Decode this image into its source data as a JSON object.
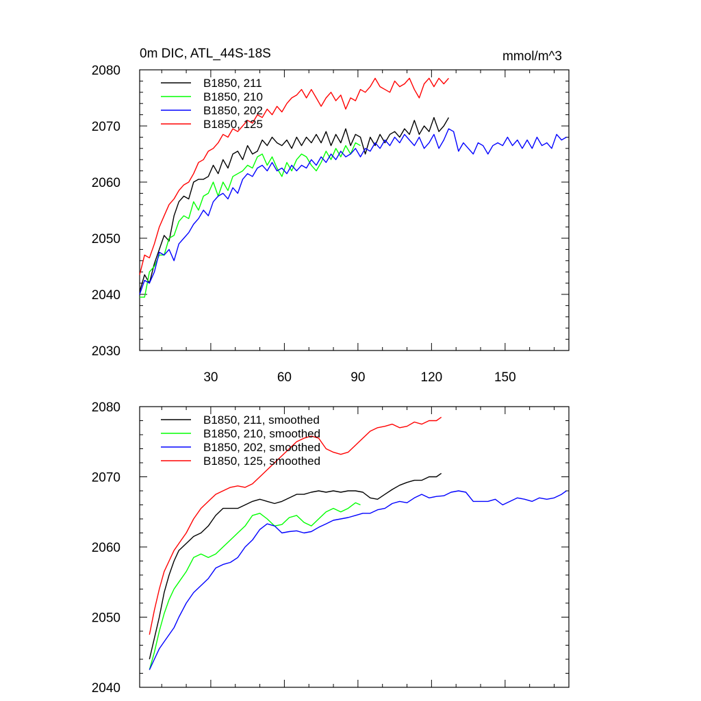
{
  "chart_data": [
    {
      "type": "line",
      "title": "0m DIC, ATL_44S-18S",
      "units": "mmol/m^3",
      "xlim": [
        1,
        176
      ],
      "ylim": [
        2030,
        2080
      ],
      "xticks": [
        30,
        60,
        90,
        120,
        150
      ],
      "yticks": [
        2030,
        2040,
        2050,
        2060,
        2070,
        2080
      ],
      "legend_position": "top-left",
      "series": [
        {
          "name": "B1850, 211",
          "color": "#000000",
          "x": [
            1,
            3,
            5,
            7,
            9,
            11,
            13,
            15,
            17,
            19,
            21,
            23,
            25,
            27,
            29,
            31,
            33,
            35,
            37,
            39,
            41,
            43,
            45,
            47,
            49,
            51,
            53,
            55,
            57,
            59,
            61,
            63,
            65,
            67,
            69,
            71,
            73,
            75,
            77,
            79,
            81,
            83,
            85,
            87,
            89,
            91,
            93,
            95,
            97,
            99,
            101,
            103,
            105,
            107,
            109,
            111,
            113,
            115,
            117,
            119,
            121,
            123,
            125,
            127
          ],
          "y": [
            2040.5,
            2043.5,
            2042,
            2045.5,
            2048,
            2050.5,
            2049.5,
            2054,
            2056.5,
            2057.5,
            2057,
            2060,
            2060.5,
            2060.5,
            2061,
            2063,
            2061.5,
            2064,
            2062.5,
            2065,
            2065.5,
            2064,
            2066.5,
            2065,
            2065.5,
            2067.5,
            2066.5,
            2068,
            2067,
            2066.5,
            2067.5,
            2066,
            2068,
            2066.5,
            2068,
            2067,
            2068.5,
            2067,
            2069,
            2066.5,
            2068.5,
            2067,
            2069.5,
            2066.5,
            2068.5,
            2068,
            2065,
            2068,
            2066.5,
            2068.5,
            2067,
            2068.5,
            2069,
            2068,
            2069.5,
            2068.5,
            2071,
            2068.5,
            2070,
            2069,
            2071.5,
            2069,
            2070,
            2071.5
          ]
        },
        {
          "name": "B1850, 210",
          "color": "#00ff00",
          "x": [
            1,
            3,
            5,
            7,
            9,
            11,
            13,
            15,
            17,
            19,
            21,
            23,
            25,
            27,
            29,
            31,
            33,
            35,
            37,
            39,
            41,
            43,
            45,
            47,
            49,
            51,
            53,
            55,
            57,
            59,
            61,
            63,
            65,
            67,
            69,
            71,
            73,
            75,
            77,
            79,
            81,
            83,
            85,
            87,
            89,
            91
          ],
          "y": [
            2039.5,
            2039.5,
            2044,
            2045,
            2047,
            2047,
            2050,
            2050.5,
            2053,
            2054,
            2053.5,
            2056.5,
            2055,
            2057.5,
            2058,
            2060,
            2057.5,
            2060,
            2058.5,
            2061,
            2061.5,
            2062,
            2063,
            2062.5,
            2064.5,
            2065,
            2063,
            2064.5,
            2062.5,
            2061,
            2063.5,
            2062,
            2064,
            2065,
            2064.5,
            2063,
            2062,
            2063.5,
            2065.5,
            2064,
            2066,
            2064.5,
            2066.5,
            2065,
            2067,
            2066.5
          ]
        },
        {
          "name": "B1850, 202",
          "color": "#0000ff",
          "x": [
            1,
            3,
            5,
            7,
            9,
            11,
            13,
            15,
            17,
            19,
            21,
            23,
            25,
            27,
            29,
            31,
            33,
            35,
            37,
            39,
            41,
            43,
            45,
            47,
            49,
            51,
            53,
            55,
            57,
            59,
            61,
            63,
            65,
            67,
            69,
            71,
            73,
            75,
            77,
            79,
            81,
            83,
            85,
            87,
            89,
            91,
            93,
            95,
            97,
            99,
            101,
            103,
            105,
            107,
            109,
            111,
            113,
            115,
            117,
            119,
            121,
            123,
            125,
            127,
            129,
            131,
            133,
            135,
            137,
            139,
            141,
            143,
            145,
            147,
            149,
            151,
            153,
            155,
            157,
            159,
            161,
            163,
            165,
            167,
            169,
            171,
            173,
            175
          ],
          "y": [
            2040,
            2042.5,
            2042,
            2044,
            2047.5,
            2047,
            2048,
            2046,
            2049,
            2050,
            2051,
            2052.5,
            2053.5,
            2055,
            2054,
            2056.5,
            2057.5,
            2058,
            2057,
            2059,
            2058,
            2060.5,
            2061.5,
            2061,
            2062.5,
            2063,
            2062,
            2063.5,
            2062,
            2062.5,
            2061.5,
            2063,
            2062,
            2063,
            2062.5,
            2064,
            2063,
            2064.5,
            2063.5,
            2065,
            2064,
            2065.5,
            2064.5,
            2065,
            2066,
            2064.5,
            2066,
            2065.5,
            2067,
            2066,
            2067.5,
            2066.5,
            2068,
            2067,
            2068.5,
            2067.5,
            2066.5,
            2068,
            2066,
            2067,
            2068.5,
            2066,
            2067.5,
            2069.5,
            2069,
            2065.5,
            2067,
            2066,
            2065,
            2067,
            2066.5,
            2065,
            2066.5,
            2067,
            2066.5,
            2068,
            2066.5,
            2067.5,
            2066,
            2067.5,
            2066,
            2068,
            2066.5,
            2067,
            2066,
            2068.5,
            2067.5,
            2068
          ]
        },
        {
          "name": "B1850, 125",
          "color": "#ff0000",
          "x": [
            1,
            3,
            5,
            7,
            9,
            11,
            13,
            15,
            17,
            19,
            21,
            23,
            25,
            27,
            29,
            31,
            33,
            35,
            37,
            39,
            41,
            43,
            45,
            47,
            49,
            51,
            53,
            55,
            57,
            59,
            61,
            63,
            65,
            67,
            69,
            71,
            73,
            75,
            77,
            79,
            81,
            83,
            85,
            87,
            89,
            91,
            93,
            95,
            97,
            99,
            101,
            103,
            105,
            107,
            109,
            111,
            113,
            115,
            117,
            119,
            121,
            123,
            125,
            127
          ],
          "y": [
            2043.5,
            2047,
            2046.5,
            2049,
            2052,
            2054,
            2056,
            2057,
            2058.5,
            2059.5,
            2060,
            2061.5,
            2063.5,
            2064,
            2065.5,
            2066,
            2067,
            2068.5,
            2068,
            2069.5,
            2069,
            2070,
            2071,
            2070.5,
            2072,
            2071.5,
            2073,
            2072,
            2073.5,
            2072.5,
            2074,
            2075,
            2075.5,
            2076.5,
            2075,
            2076.5,
            2075,
            2073.5,
            2075,
            2076,
            2074.5,
            2075.5,
            2073,
            2075,
            2074.5,
            2076.5,
            2076,
            2077,
            2078.5,
            2077,
            2076.5,
            2076,
            2078,
            2077,
            2077.5,
            2078.5,
            2076.5,
            2075,
            2077.5,
            2078.5,
            2077,
            2078.5,
            2077.5,
            2078.5
          ]
        }
      ]
    },
    {
      "type": "line",
      "xlim": [
        1,
        176
      ],
      "ylim": [
        2040,
        2080
      ],
      "xticks": [
        30,
        60,
        90,
        120,
        150
      ],
      "yticks": [
        2040,
        2050,
        2060,
        2070,
        2080
      ],
      "legend_position": "top-left",
      "series": [
        {
          "name": "B1850, 211, smoothed",
          "color": "#000000",
          "x": [
            5,
            7,
            9,
            11,
            13,
            15,
            17,
            20,
            23,
            26,
            29,
            32,
            35,
            38,
            41,
            44,
            47,
            50,
            53,
            56,
            59,
            62,
            65,
            68,
            71,
            74,
            77,
            80,
            83,
            86,
            89,
            92,
            95,
            98,
            101,
            104,
            107,
            110,
            113,
            116,
            119,
            122,
            124
          ],
          "y": [
            2044,
            2047,
            2050,
            2053.5,
            2056,
            2058,
            2059.5,
            2060.5,
            2061.5,
            2062,
            2063,
            2064.5,
            2065.5,
            2065.5,
            2065.5,
            2066,
            2066.5,
            2066.8,
            2066.5,
            2066.2,
            2066.5,
            2067,
            2067.5,
            2067.5,
            2067.8,
            2068,
            2067.8,
            2068,
            2067.8,
            2068,
            2068,
            2067.8,
            2067,
            2066.8,
            2067.5,
            2068.2,
            2068.8,
            2069.2,
            2069.5,
            2069.5,
            2070,
            2070,
            2070.5
          ]
        },
        {
          "name": "B1850, 210, smoothed",
          "color": "#00ff00",
          "x": [
            5,
            7,
            9,
            11,
            13,
            15,
            17,
            20,
            23,
            26,
            29,
            32,
            35,
            38,
            41,
            44,
            47,
            50,
            53,
            56,
            59,
            62,
            65,
            68,
            71,
            74,
            77,
            80,
            83,
            86,
            89,
            91
          ],
          "y": [
            2042.5,
            2045,
            2048,
            2050.5,
            2052.5,
            2054,
            2055,
            2056.5,
            2058.5,
            2059,
            2058.5,
            2059,
            2060,
            2061,
            2062,
            2063,
            2064.5,
            2064.8,
            2064,
            2063,
            2063.2,
            2064.2,
            2064.5,
            2063.5,
            2063,
            2064,
            2065,
            2065.5,
            2065,
            2065.5,
            2066.3,
            2066
          ]
        },
        {
          "name": "B1850, 202, smoothed",
          "color": "#0000ff",
          "x": [
            5,
            7,
            9,
            11,
            13,
            15,
            17,
            20,
            23,
            26,
            29,
            32,
            35,
            38,
            41,
            44,
            47,
            50,
            53,
            56,
            59,
            62,
            65,
            68,
            71,
            74,
            77,
            80,
            83,
            86,
            89,
            92,
            95,
            98,
            101,
            104,
            107,
            110,
            113,
            116,
            119,
            122,
            125,
            128,
            131,
            134,
            137,
            140,
            143,
            146,
            149,
            152,
            155,
            158,
            161,
            164,
            167,
            170,
            173,
            175
          ],
          "y": [
            2042.5,
            2044,
            2045.5,
            2046.5,
            2047.5,
            2048.5,
            2050,
            2052,
            2053.5,
            2054.5,
            2055.5,
            2057,
            2057.5,
            2057.8,
            2058.5,
            2060,
            2061,
            2062.5,
            2063.3,
            2063,
            2062,
            2062.2,
            2062.3,
            2062,
            2062.2,
            2062.8,
            2063.3,
            2063.8,
            2064,
            2064.2,
            2064.5,
            2064.8,
            2064.8,
            2065.3,
            2065.5,
            2066.2,
            2066.5,
            2066.3,
            2067,
            2067.5,
            2067,
            2067.2,
            2067.3,
            2067.8,
            2068,
            2067.8,
            2066.5,
            2066.5,
            2066.5,
            2066.8,
            2066,
            2066.5,
            2067,
            2066.8,
            2066.5,
            2067,
            2066.8,
            2067,
            2067.5,
            2068
          ]
        },
        {
          "name": "B1850, 125, smoothed",
          "color": "#ff0000",
          "x": [
            5,
            7,
            9,
            11,
            13,
            15,
            17,
            20,
            23,
            26,
            29,
            32,
            35,
            38,
            41,
            44,
            47,
            50,
            53,
            56,
            59,
            62,
            65,
            68,
            71,
            74,
            77,
            80,
            83,
            86,
            89,
            92,
            95,
            98,
            101,
            104,
            107,
            110,
            113,
            116,
            119,
            122,
            124
          ],
          "y": [
            2047.5,
            2051,
            2054,
            2056.5,
            2058,
            2059.5,
            2060.5,
            2062,
            2064,
            2065.5,
            2066.5,
            2067.5,
            2068,
            2068.5,
            2068.7,
            2068.5,
            2069,
            2070,
            2071,
            2072,
            2073,
            2074,
            2075,
            2075.5,
            2075.8,
            2075.5,
            2074,
            2073.5,
            2073.2,
            2073.5,
            2074.5,
            2075.5,
            2076.5,
            2077,
            2077.2,
            2077.5,
            2077,
            2077.2,
            2077.8,
            2077.5,
            2078,
            2078,
            2078.5
          ]
        }
      ]
    }
  ]
}
